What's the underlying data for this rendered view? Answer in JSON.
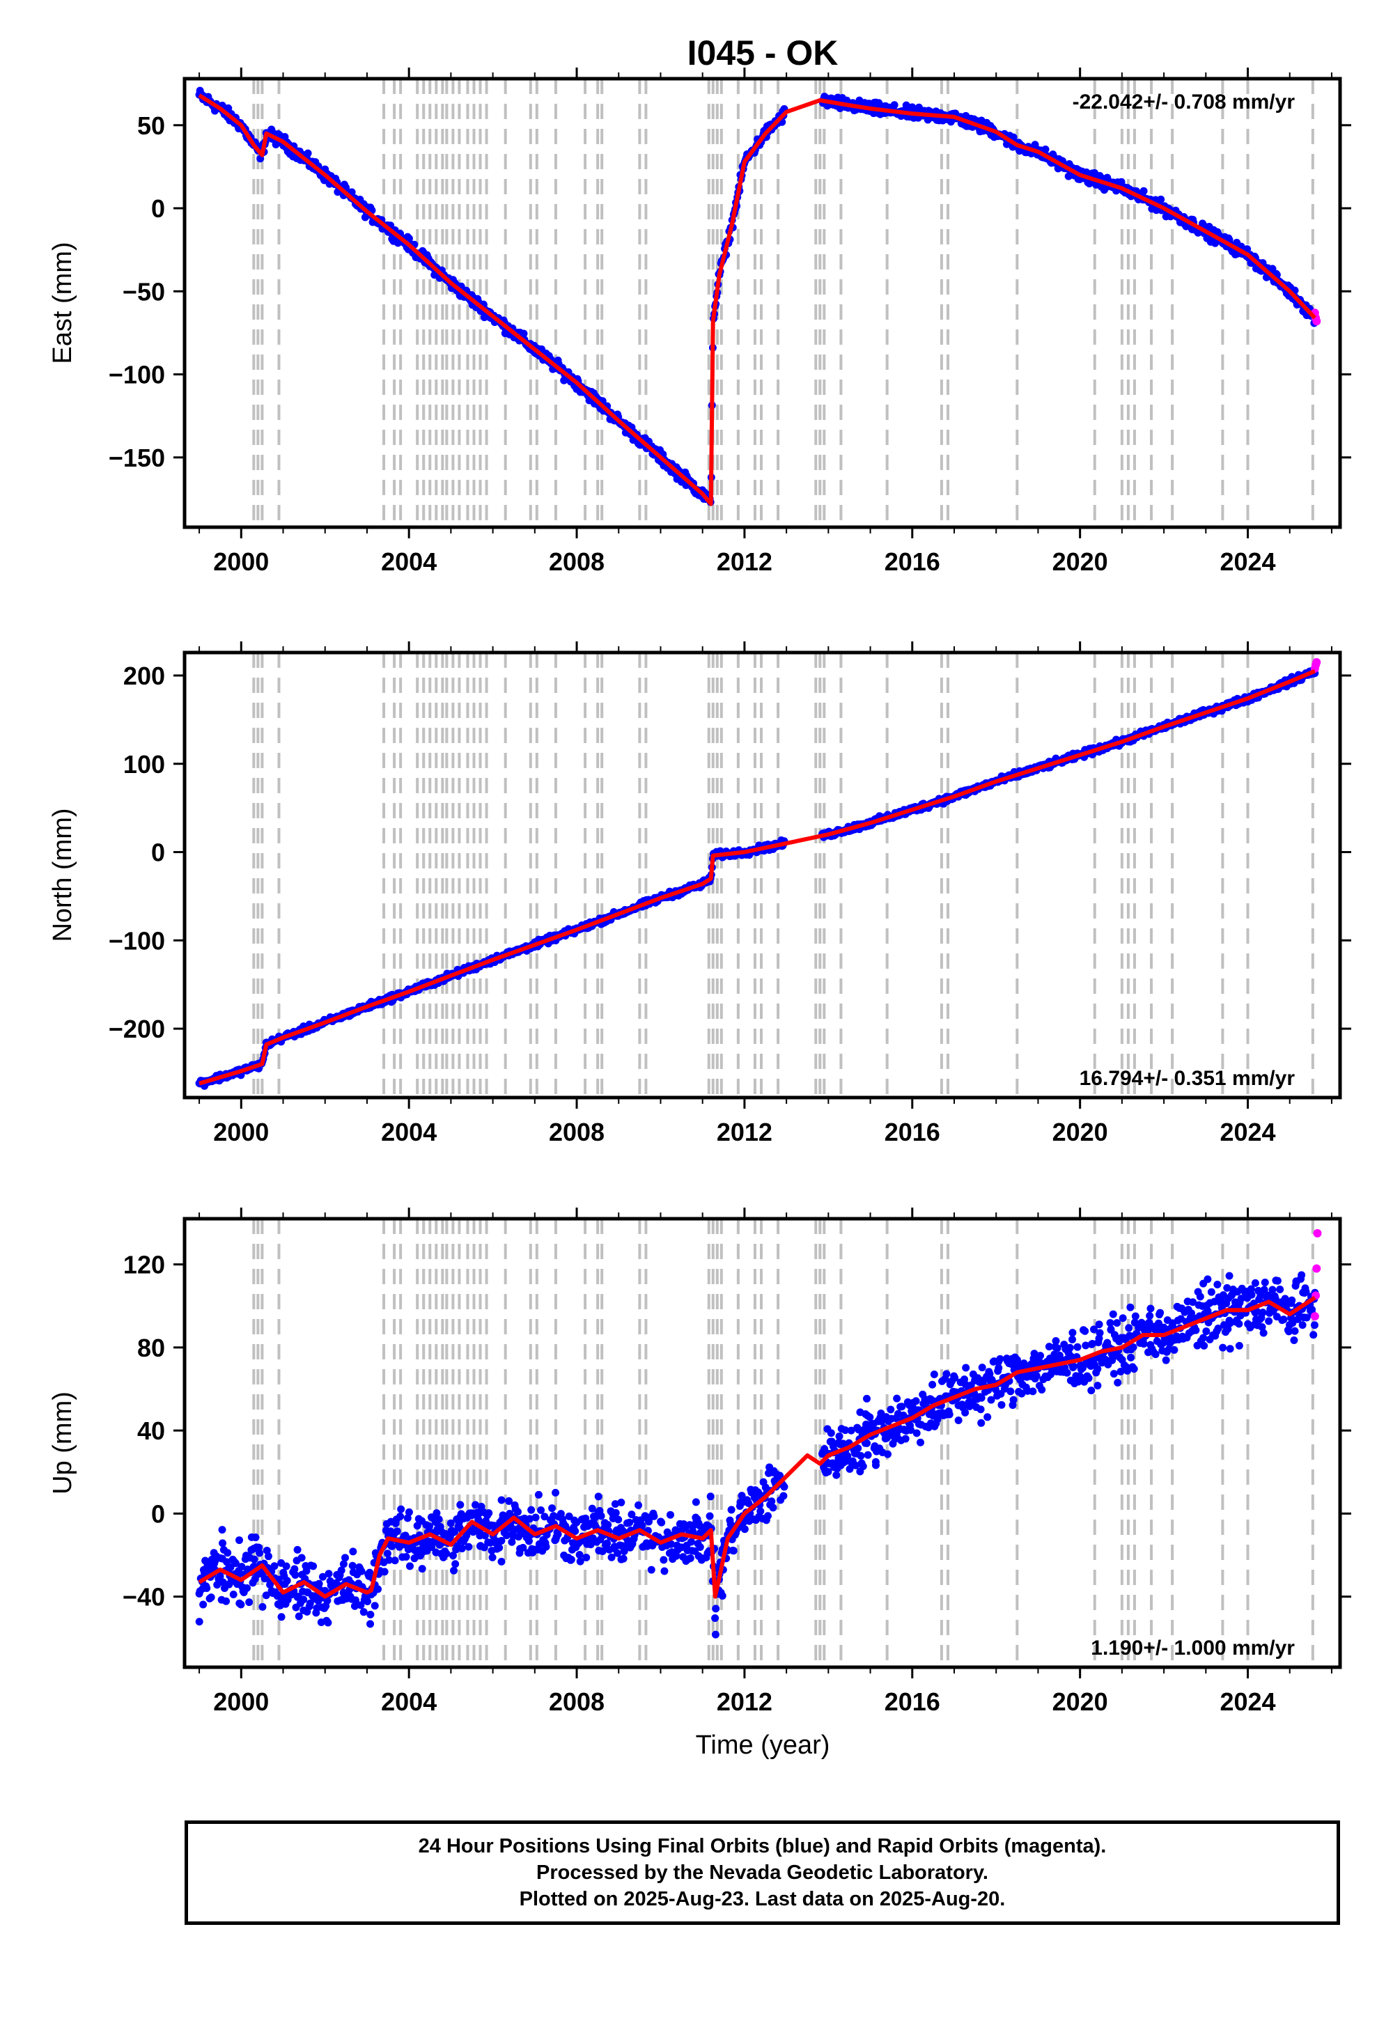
{
  "title": "I045 - OK",
  "xlabel": "Time (year)",
  "x_ticks": [
    2000,
    2004,
    2008,
    2012,
    2016,
    2020,
    2024
  ],
  "colors": {
    "final_orbits": "#0000ff",
    "rapid_orbits": "#ff00ff",
    "model": "#ff0000",
    "event_lines": "#c0c0c0"
  },
  "footer": {
    "line1": "24 Hour Positions Using Final Orbits (blue) and Rapid Orbits (magenta).",
    "line2": "Processed by the Nevada Geodetic Laboratory.",
    "line3": "Plotted on 2025-Aug-23. Last data on 2025-Aug-20."
  },
  "chart_data": [
    {
      "type": "scatter",
      "component": "east",
      "ylabel": "East (mm)",
      "rate_label": "-22.042+/- 0.708 mm/yr",
      "xlim": [
        1998.65,
        2026.2
      ],
      "ylim": [
        -192,
        78
      ],
      "y_ticks": [
        50,
        0,
        -50,
        -100,
        -150
      ],
      "event_lines_x": [
        2000.3,
        2000.4,
        2000.5,
        2000.9,
        2003.4,
        2003.65,
        2003.8,
        2004.2,
        2004.35,
        2004.5,
        2004.65,
        2004.8,
        2004.9,
        2005.05,
        2005.2,
        2005.4,
        2005.55,
        2005.7,
        2005.85,
        2006.3,
        2006.9,
        2007.05,
        2007.5,
        2008.2,
        2008.5,
        2008.6,
        2009.5,
        2009.65,
        2011.15,
        2011.25,
        2011.35,
        2011.45,
        2011.85,
        2012.25,
        2012.4,
        2012.8,
        2013.7,
        2013.8,
        2013.9,
        2014.3,
        2015.4,
        2016.7,
        2016.85,
        2018.5,
        2020.35,
        2021.0,
        2021.15,
        2021.3,
        2021.7,
        2022.2,
        2023.4,
        2024.0,
        2025.55
      ],
      "series": [
        {
          "name": "Final Orbits",
          "x": [
            1999.0,
            1999.5,
            2000.0,
            2000.3,
            2000.5,
            2000.6,
            2001.0,
            2002.0,
            2003.0,
            2004.0,
            2005.0,
            2006.0,
            2007.0,
            2008.0,
            2009.0,
            2010.0,
            2011.0,
            2011.2,
            2011.25,
            2011.4,
            2011.7,
            2012.0,
            2012.5,
            2013.0,
            2013.8,
            2014.5,
            2015.0,
            2016.0,
            2017.0,
            2018.0,
            2018.5,
            2019.0,
            2020.0,
            2021.0,
            2022.0,
            2023.0,
            2024.0,
            2025.0,
            2025.6
          ],
          "y": [
            68,
            60,
            50,
            38,
            32,
            45,
            40,
            20,
            -2,
            -22,
            -45,
            -65,
            -85,
            -105,
            -128,
            -150,
            -172,
            -178,
            -68,
            -40,
            -10,
            28,
            45,
            58,
            65,
            62,
            60,
            57,
            55,
            46,
            38,
            34,
            20,
            12,
            0,
            -14,
            -28,
            -50,
            -66
          ]
        },
        {
          "name": "Rapid Orbits",
          "x": [
            2025.6,
            2025.62,
            2025.64
          ],
          "y": [
            -63,
            -66,
            -68
          ]
        }
      ]
    },
    {
      "type": "scatter",
      "component": "north",
      "ylabel": "North (mm)",
      "rate_label": "16.794+/- 0.351 mm/yr",
      "xlim": [
        1998.65,
        2026.2
      ],
      "ylim": [
        -278,
        226
      ],
      "y_ticks": [
        200,
        100,
        0,
        -100,
        -200
      ],
      "event_lines_x": [
        2000.3,
        2000.4,
        2000.5,
        2000.9,
        2003.4,
        2003.65,
        2003.8,
        2004.2,
        2004.35,
        2004.5,
        2004.65,
        2004.8,
        2004.9,
        2005.05,
        2005.2,
        2005.4,
        2005.55,
        2005.7,
        2005.85,
        2006.3,
        2006.9,
        2007.05,
        2007.5,
        2008.2,
        2008.5,
        2008.6,
        2009.5,
        2009.65,
        2011.15,
        2011.25,
        2011.35,
        2011.45,
        2011.85,
        2012.25,
        2012.4,
        2012.8,
        2013.7,
        2013.8,
        2013.9,
        2014.3,
        2015.4,
        2016.7,
        2016.85,
        2018.5,
        2020.35,
        2021.0,
        2021.15,
        2021.3,
        2021.7,
        2022.2,
        2023.4,
        2024.0,
        2025.55
      ],
      "series": [
        {
          "name": "Final Orbits",
          "x": [
            1999.0,
            2000.0,
            2000.5,
            2000.6,
            2001.0,
            2002.0,
            2003.0,
            2004.0,
            2005.0,
            2006.0,
            2007.0,
            2008.0,
            2009.0,
            2010.0,
            2011.0,
            2011.2,
            2011.25,
            2012.0,
            2013.0,
            2014.0,
            2015.0,
            2016.0,
            2017.0,
            2018.0,
            2019.0,
            2020.0,
            2021.0,
            2022.0,
            2023.0,
            2024.0,
            2025.0,
            2025.6
          ],
          "y": [
            -262,
            -248,
            -240,
            -218,
            -210,
            -193,
            -175,
            -158,
            -140,
            -122,
            -105,
            -88,
            -70,
            -52,
            -36,
            -30,
            -4,
            0,
            10,
            20,
            33,
            48,
            63,
            80,
            95,
            110,
            125,
            142,
            158,
            174,
            193,
            205
          ]
        },
        {
          "name": "Rapid Orbits",
          "x": [
            2025.6,
            2025.62,
            2025.64
          ],
          "y": [
            208,
            212,
            215
          ]
        }
      ]
    },
    {
      "type": "scatter",
      "component": "up",
      "ylabel": "Up (mm)",
      "rate_label": "1.190+/- 1.000 mm/yr",
      "xlim": [
        1998.65,
        2026.2
      ],
      "ylim": [
        -74,
        142
      ],
      "y_ticks": [
        120,
        80,
        40,
        0,
        -40
      ],
      "event_lines_x": [
        2000.3,
        2000.4,
        2000.5,
        2000.9,
        2003.4,
        2003.65,
        2003.8,
        2004.2,
        2004.35,
        2004.5,
        2004.65,
        2004.8,
        2004.9,
        2005.05,
        2005.2,
        2005.4,
        2005.55,
        2005.7,
        2005.85,
        2006.3,
        2006.9,
        2007.05,
        2007.5,
        2008.2,
        2008.5,
        2008.6,
        2009.5,
        2009.65,
        2011.15,
        2011.25,
        2011.35,
        2011.45,
        2011.85,
        2012.25,
        2012.4,
        2012.8,
        2013.7,
        2013.8,
        2013.9,
        2014.3,
        2015.4,
        2016.7,
        2016.85,
        2018.5,
        2020.35,
        2021.0,
        2021.15,
        2021.3,
        2021.7,
        2022.2,
        2023.4,
        2024.0,
        2025.55
      ],
      "series": [
        {
          "name": "Final Orbits",
          "x": [
            1999.0,
            1999.5,
            2000.0,
            2000.5,
            2001.0,
            2001.5,
            2002.0,
            2002.5,
            2003.0,
            2003.1,
            2003.3,
            2003.5,
            2004.0,
            2004.5,
            2005.0,
            2005.5,
            2006.0,
            2006.5,
            2007.0,
            2007.5,
            2008.0,
            2008.5,
            2009.0,
            2009.5,
            2010.0,
            2010.5,
            2011.0,
            2011.2,
            2011.3,
            2011.6,
            2012.0,
            2012.5,
            2013.0,
            2013.5,
            2013.8,
            2014.0,
            2014.5,
            2015.0,
            2015.5,
            2016.0,
            2016.5,
            2017.0,
            2017.5,
            2018.0,
            2018.5,
            2019.0,
            2019.5,
            2020.0,
            2020.5,
            2021.0,
            2021.5,
            2022.0,
            2022.5,
            2023.0,
            2023.5,
            2024.0,
            2024.5,
            2025.0,
            2025.6
          ],
          "y": [
            -33,
            -27,
            -32,
            -25,
            -38,
            -33,
            -40,
            -34,
            -38,
            -37,
            -20,
            -12,
            -14,
            -10,
            -15,
            -4,
            -10,
            -2,
            -10,
            -6,
            -12,
            -8,
            -12,
            -8,
            -14,
            -10,
            -12,
            -8,
            -40,
            -12,
            0,
            8,
            18,
            28,
            24,
            28,
            32,
            38,
            42,
            46,
            52,
            56,
            60,
            62,
            68,
            70,
            72,
            74,
            78,
            80,
            86,
            86,
            90,
            94,
            98,
            98,
            102,
            96,
            104
          ]
        },
        {
          "name": "Rapid Orbits",
          "x": [
            2025.6,
            2025.62,
            2025.64,
            2025.66
          ],
          "y": [
            95,
            105,
            118,
            135
          ]
        }
      ]
    }
  ]
}
